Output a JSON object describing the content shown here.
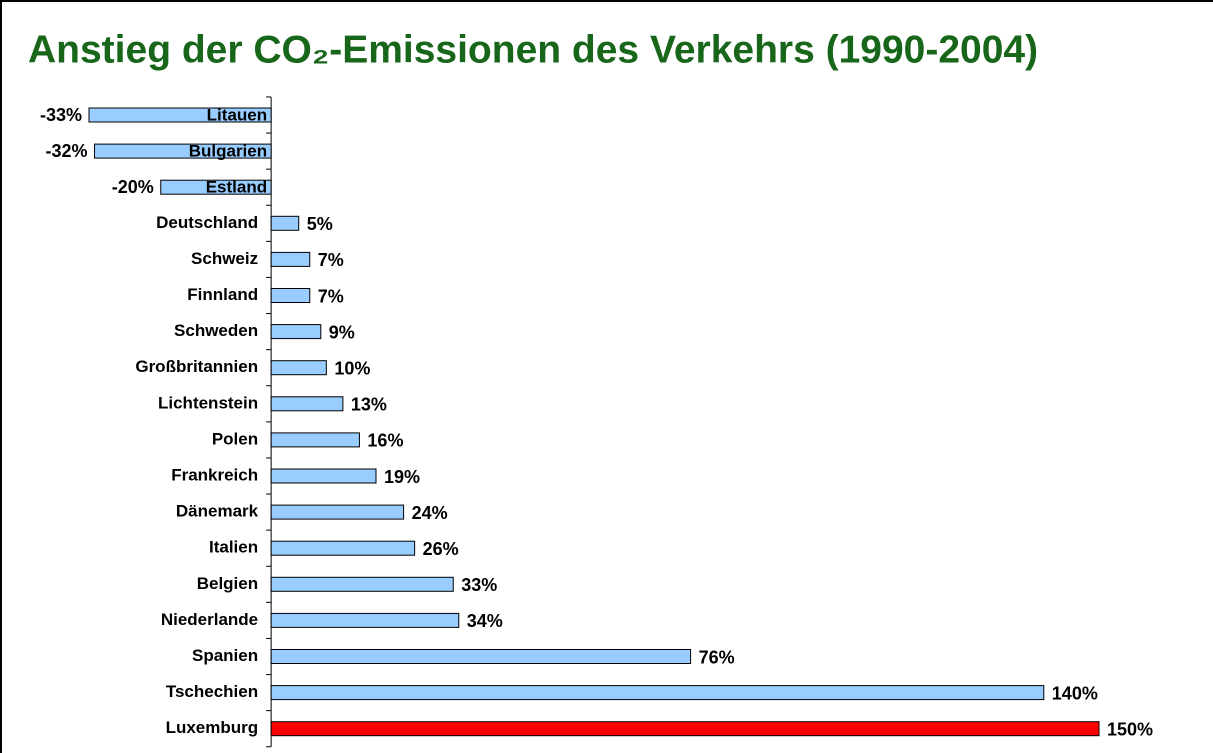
{
  "chart_data": {
    "type": "bar",
    "orientation": "horizontal",
    "title": "Anstieg der CO₂-Emissionen des Verkehrs (1990-2004)",
    "categories": [
      "Litauen",
      "Bulgarien",
      "Estland",
      "Deutschland",
      "Schweiz",
      "Finnland",
      "Schweden",
      "Großbritannien",
      "Lichtenstein",
      "Polen",
      "Frankreich",
      "Dänemark",
      "Italien",
      "Belgien",
      "Niederlande",
      "Spanien",
      "Tschechien",
      "Luxemburg"
    ],
    "values": [
      -33,
      -32,
      -20,
      5,
      7,
      7,
      9,
      10,
      13,
      16,
      19,
      24,
      26,
      33,
      34,
      76,
      140,
      150
    ],
    "value_labels": [
      "-33%",
      "-32%",
      "-20%",
      "5%",
      "7%",
      "7%",
      "9%",
      "10%",
      "13%",
      "16%",
      "19%",
      "24%",
      "26%",
      "33%",
      "34%",
      "76%",
      "140%",
      "150%"
    ],
    "colors": [
      "#99ccff",
      "#99ccff",
      "#99ccff",
      "#99ccff",
      "#99ccff",
      "#99ccff",
      "#99ccff",
      "#99ccff",
      "#99ccff",
      "#99ccff",
      "#99ccff",
      "#99ccff",
      "#99ccff",
      "#99ccff",
      "#99ccff",
      "#99ccff",
      "#99ccff",
      "#ff0000"
    ]
  }
}
